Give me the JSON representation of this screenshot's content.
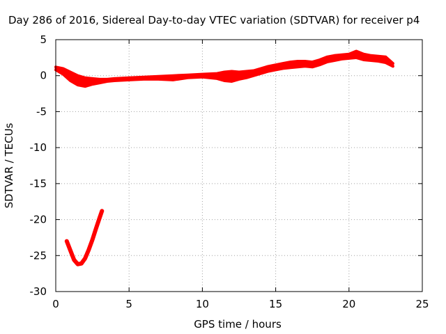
{
  "chart_data": {
    "type": "line",
    "title": "Day 286 of 2016, Sidereal Day-to-day VTEC variation (SDTVAR) for receiver p4",
    "xlabel": "GPS time / hours",
    "ylabel": "SDTVAR / TECUs",
    "xlim": [
      0,
      25
    ],
    "ylim": [
      -30,
      5
    ],
    "xticks": [
      0,
      5,
      10,
      15,
      20,
      25
    ],
    "yticks": [
      -30,
      -25,
      -20,
      -15,
      -10,
      -5,
      0,
      5
    ],
    "x_tick_labels": [
      "0",
      "5",
      "10",
      "15",
      "20",
      "25"
    ],
    "y_tick_labels": [
      "-30",
      "-25",
      "-20",
      "-15",
      "-10",
      "-5",
      "0",
      "5"
    ],
    "grid": true,
    "legend": "none",
    "series_color": "#ff0000",
    "series": [
      {
        "name": "main-band-upper",
        "x": [
          0.0,
          0.5,
          1.0,
          1.5,
          2.0,
          2.5,
          3.0,
          3.5,
          4.0,
          5.0,
          6.0,
          7.0,
          8.0,
          9.0,
          10.0,
          11.0,
          11.5,
          12.0,
          12.5,
          13.0,
          13.5,
          14.0,
          14.5,
          15.0,
          15.5,
          16.0,
          16.5,
          17.0,
          17.5,
          18.0,
          18.5,
          19.0,
          19.5,
          20.0,
          20.5,
          21.0,
          21.5,
          22.0,
          22.5,
          23.0
        ],
        "y": [
          1.2,
          1.0,
          0.5,
          0.0,
          -0.3,
          -0.4,
          -0.5,
          -0.5,
          -0.4,
          -0.3,
          -0.2,
          -0.1,
          0.0,
          0.1,
          0.2,
          0.3,
          0.5,
          0.6,
          0.5,
          0.6,
          0.7,
          1.0,
          1.3,
          1.5,
          1.7,
          1.9,
          2.0,
          2.0,
          1.9,
          2.2,
          2.6,
          2.8,
          2.9,
          3.0,
          3.4,
          3.0,
          2.8,
          2.7,
          2.6,
          1.7
        ]
      },
      {
        "name": "main-band-lower",
        "x": [
          0.0,
          0.5,
          1.0,
          1.5,
          2.0,
          2.5,
          3.0,
          3.5,
          4.0,
          5.0,
          6.0,
          7.0,
          8.0,
          9.0,
          10.0,
          11.0,
          11.5,
          12.0,
          12.5,
          13.0,
          13.5,
          14.0,
          14.5,
          15.0,
          15.5,
          16.0,
          16.5,
          17.0,
          17.5,
          18.0,
          18.5,
          19.0,
          19.5,
          20.0,
          20.5,
          21.0,
          21.5,
          22.0,
          22.5,
          23.0
        ],
        "y": [
          0.8,
          0.2,
          -0.7,
          -1.3,
          -1.5,
          -1.2,
          -1.0,
          -0.8,
          -0.7,
          -0.6,
          -0.5,
          -0.5,
          -0.6,
          -0.3,
          -0.2,
          -0.4,
          -0.7,
          -0.8,
          -0.5,
          -0.3,
          0.0,
          0.3,
          0.6,
          0.8,
          1.0,
          1.1,
          1.2,
          1.3,
          1.2,
          1.5,
          1.9,
          2.1,
          2.3,
          2.4,
          2.5,
          2.2,
          2.1,
          2.0,
          1.8,
          1.3
        ]
      },
      {
        "name": "early-dip",
        "x": [
          0.75,
          1.0,
          1.25,
          1.5,
          1.75,
          2.0,
          2.25,
          2.5,
          2.75,
          3.0,
          3.15
        ],
        "y": [
          -23.0,
          -24.3,
          -25.6,
          -26.2,
          -26.1,
          -25.4,
          -24.2,
          -22.8,
          -21.2,
          -19.7,
          -18.8
        ]
      }
    ]
  }
}
